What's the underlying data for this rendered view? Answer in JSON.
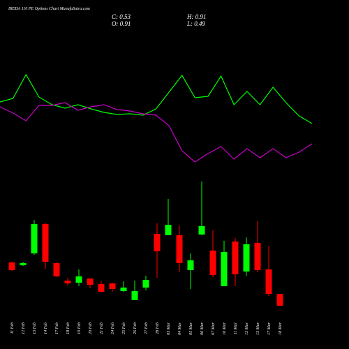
{
  "chart_data": {
    "type": "candlestick",
    "title": "IREDA 110 PE Options Chart MunafaSutra.com",
    "info": [
      "C: 0.53",
      "H: 0.91",
      "O: 0.91",
      "L: 0.49"
    ],
    "categories": [
      "11 Feb",
      "12 Feb",
      "13 Feb",
      "14 Feb",
      "17 Feb",
      "18 Feb",
      "19 Feb",
      "20 Feb",
      "21 Feb",
      "24 Feb",
      "25 Feb",
      "26 Feb",
      "27 Feb",
      "28 Feb",
      "03 Mar",
      "04 Mar",
      "05 Mar",
      "06 Mar",
      "07 Mar",
      "10 Mar",
      "11 Mar",
      "12 Mar",
      "13 Mar",
      "17 Mar",
      "18 Mar"
    ],
    "open": [
      0.74,
      0.7,
      0.87,
      1.29,
      0.73,
      0.48,
      0.45,
      0.51,
      0.43,
      0.44,
      0.33,
      0.2,
      0.38,
      1.15,
      1.13,
      1.13,
      0.63,
      1.14,
      0.91,
      0.4,
      1.04,
      0.61,
      1.02,
      0.64,
      0.29
    ],
    "high": [
      0.75,
      0.75,
      1.35,
      1.31,
      0.74,
      0.52,
      0.64,
      0.51,
      0.47,
      0.45,
      0.47,
      0.48,
      0.55,
      1.3,
      1.65,
      1.27,
      0.87,
      1.9,
      1.2,
      1.05,
      1.09,
      1.1,
      1.33,
      0.97,
      0.29
    ],
    "low": [
      0.62,
      0.69,
      0.85,
      0.65,
      0.53,
      0.41,
      0.4,
      0.37,
      0.31,
      0.32,
      0.32,
      0.2,
      0.34,
      0.52,
      1.13,
      0.6,
      0.36,
      1.13,
      0.53,
      0.4,
      0.4,
      0.55,
      0.6,
      0.26,
      0.12
    ],
    "close": [
      0.63,
      0.73,
      1.29,
      0.75,
      0.54,
      0.44,
      0.54,
      0.42,
      0.32,
      0.36,
      0.38,
      0.33,
      0.49,
      0.9,
      1.28,
      0.73,
      0.77,
      1.26,
      0.56,
      0.89,
      0.57,
      1.0,
      0.63,
      0.29,
      0.12
    ],
    "up_color": "#00ff00",
    "down_color": "#ff0000",
    "ylim": [
      0,
      2
    ],
    "lines": [
      {
        "color": "#00ff00",
        "values": [
          1.04,
          1.09,
          1.43,
          1.11,
          1.0,
          0.95,
          1.0,
          0.94,
          0.89,
          0.86,
          0.87,
          0.85,
          0.94,
          1.18,
          1.42,
          1.1,
          1.12,
          1.41,
          1.0,
          1.19,
          1.0,
          1.25,
          1.03,
          0.84,
          0.73
        ]
      },
      {
        "color": "#cc00cc",
        "values": [
          0.97,
          0.88,
          0.77,
          0.99,
          0.99,
          1.03,
          0.92,
          0.97,
          1.0,
          0.93,
          0.91,
          0.87,
          0.85,
          0.7,
          0.34,
          0.18,
          0.3,
          0.4,
          0.22,
          0.37,
          0.24,
          0.37,
          0.24,
          0.32,
          0.44
        ]
      }
    ],
    "y2lim": [
      0,
      2.5
    ]
  }
}
